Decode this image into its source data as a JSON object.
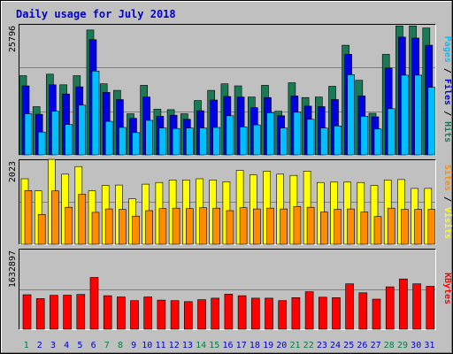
{
  "title": "Daily usage for July 2018",
  "colors": {
    "background": "#c0c0c0",
    "title": "#0000cc",
    "hits": "#1a7a55",
    "files": "#0000e0",
    "pages": "#00bfff",
    "visits": "#ffff00",
    "sites": "#ff8c00",
    "kbytes": "#ff0000",
    "weekend_day": "#008040",
    "weekday_day": "#0000cc"
  },
  "chart_data": [
    {
      "type": "bar",
      "panel": "top",
      "max_label": "25796",
      "ylim": [
        0,
        25796
      ],
      "legend": [
        {
          "label": "Pages",
          "color_key": "pages"
        },
        {
          "label": "Files",
          "color_key": "files"
        },
        {
          "label": "Hits",
          "color_key": "hits"
        }
      ],
      "separator": " / ",
      "categories": [
        "1",
        "2",
        "3",
        "4",
        "5",
        "6",
        "7",
        "8",
        "9",
        "10",
        "11",
        "12",
        "13",
        "14",
        "15",
        "16",
        "17",
        "18",
        "19",
        "20",
        "21",
        "22",
        "23",
        "24",
        "25",
        "26",
        "27",
        "28",
        "29",
        "30",
        "31"
      ],
      "series": [
        {
          "name": "Hits",
          "color_key": "hits",
          "values": [
            15600,
            9500,
            15900,
            13800,
            15600,
            24600,
            14000,
            12700,
            8100,
            13700,
            9000,
            8900,
            8100,
            10700,
            12700,
            14000,
            13600,
            11400,
            13700,
            8600,
            14200,
            11300,
            11400,
            13500,
            21600,
            14700,
            8200,
            19800,
            25400,
            25400,
            25000
          ]
        },
        {
          "name": "Files",
          "color_key": "files",
          "values": [
            13600,
            8000,
            13800,
            12000,
            13400,
            22700,
            12300,
            10900,
            7200,
            11400,
            7600,
            7800,
            7000,
            8700,
            10800,
            11500,
            11400,
            9300,
            11300,
            7700,
            11600,
            9600,
            9500,
            10900,
            19800,
            11600,
            7500,
            17100,
            23200,
            23000,
            21600
          ]
        },
        {
          "name": "Pages",
          "color_key": "pages",
          "values": [
            8100,
            4500,
            8600,
            6000,
            9800,
            16500,
            6600,
            5400,
            4400,
            6800,
            5300,
            5200,
            5300,
            5300,
            5400,
            7700,
            5500,
            5900,
            8300,
            5300,
            8400,
            7000,
            5300,
            5700,
            15800,
            7600,
            5100,
            9100,
            15700,
            15700,
            13300
          ]
        }
      ]
    },
    {
      "type": "bar",
      "panel": "middle",
      "max_label": "2023",
      "ylim": [
        0,
        2023
      ],
      "legend": [
        {
          "label": "Sites",
          "color_key": "sites"
        },
        {
          "label": "Visits",
          "color_key": "visits"
        }
      ],
      "separator": " / ",
      "categories": [
        "1",
        "2",
        "3",
        "4",
        "5",
        "6",
        "7",
        "8",
        "9",
        "10",
        "11",
        "12",
        "13",
        "14",
        "15",
        "16",
        "17",
        "18",
        "19",
        "20",
        "21",
        "22",
        "23",
        "24",
        "25",
        "26",
        "27",
        "28",
        "29",
        "30",
        "31"
      ],
      "series": [
        {
          "name": "Visits",
          "color_key": "visits",
          "values": [
            1560,
            1270,
            2020,
            1670,
            1850,
            1270,
            1400,
            1410,
            1080,
            1430,
            1470,
            1530,
            1530,
            1560,
            1530,
            1490,
            1760,
            1650,
            1740,
            1670,
            1640,
            1740,
            1470,
            1480,
            1480,
            1470,
            1400,
            1530,
            1540,
            1330,
            1330
          ]
        },
        {
          "name": "Sites",
          "color_key": "sites",
          "values": [
            1280,
            710,
            1270,
            880,
            1190,
            760,
            840,
            830,
            670,
            800,
            850,
            860,
            850,
            870,
            860,
            800,
            870,
            840,
            860,
            840,
            900,
            880,
            770,
            830,
            840,
            770,
            660,
            860,
            830,
            830,
            830
          ]
        }
      ]
    },
    {
      "type": "bar",
      "panel": "bottom",
      "max_label": "1632897",
      "ylim": [
        0,
        1632897
      ],
      "legend": [
        {
          "label": "KBytes",
          "color_key": "kbytes"
        }
      ],
      "categories": [
        "1",
        "2",
        "3",
        "4",
        "5",
        "6",
        "7",
        "8",
        "9",
        "10",
        "11",
        "12",
        "13",
        "14",
        "15",
        "16",
        "17",
        "18",
        "19",
        "20",
        "21",
        "22",
        "23",
        "24",
        "25",
        "26",
        "27",
        "28",
        "29",
        "30",
        "31"
      ],
      "series": [
        {
          "name": "KBytes",
          "color_key": "kbytes",
          "values": [
            700000,
            620000,
            687000,
            690000,
            705000,
            1050000,
            680000,
            655000,
            580000,
            655000,
            590000,
            580000,
            560000,
            600000,
            630000,
            710000,
            680000,
            630000,
            630000,
            580000,
            640000,
            760000,
            650000,
            640000,
            920000,
            740000,
            610000,
            860000,
            1020000,
            920000,
            870000
          ]
        }
      ]
    }
  ]
}
